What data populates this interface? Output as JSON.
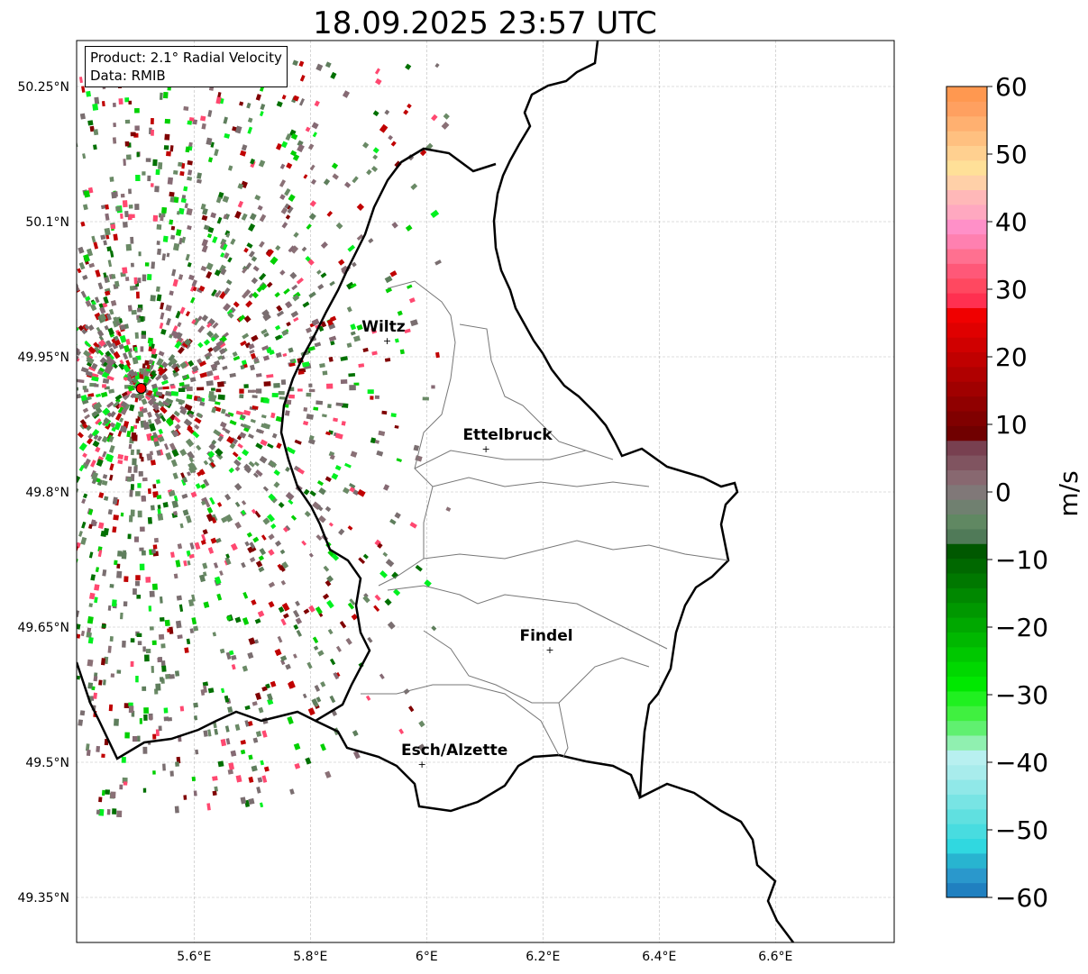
{
  "title": "18.09.2025 23:57 UTC",
  "info_box": {
    "product": "Product: 2.1° Radial Velocity",
    "data": "Data: RMIB"
  },
  "axes": {
    "lon_ticks": [
      {
        "v": 5.6,
        "label": "5.6°E"
      },
      {
        "v": 5.8,
        "label": "5.8°E"
      },
      {
        "v": 6.0,
        "label": "6°E"
      },
      {
        "v": 6.2,
        "label": "6.2°E"
      },
      {
        "v": 6.4,
        "label": "6.4°E"
      },
      {
        "v": 6.6,
        "label": "6.6°E"
      }
    ],
    "lat_ticks": [
      {
        "v": 50.25,
        "label": "50.25°N"
      },
      {
        "v": 50.1,
        "label": "50.1°N"
      },
      {
        "v": 49.95,
        "label": "49.95°N"
      },
      {
        "v": 49.8,
        "label": "49.8°N"
      },
      {
        "v": 49.65,
        "label": "49.65°N"
      },
      {
        "v": 49.5,
        "label": "49.5°N"
      },
      {
        "v": 49.35,
        "label": "49.35°N"
      }
    ],
    "lon_range": [
      5.398,
      6.805
    ],
    "lat_range": [
      49.3,
      50.3
    ]
  },
  "colorbar": {
    "label": "m/s",
    "range": [
      -60,
      60
    ],
    "ticks": [
      {
        "v": 60,
        "label": "60"
      },
      {
        "v": 50,
        "label": "50"
      },
      {
        "v": 40,
        "label": "40"
      },
      {
        "v": 30,
        "label": "30"
      },
      {
        "v": 20,
        "label": "20"
      },
      {
        "v": 10,
        "label": "10"
      },
      {
        "v": 0,
        "label": "0"
      },
      {
        "v": -10,
        "label": "−10"
      },
      {
        "v": -20,
        "label": "−20"
      },
      {
        "v": -30,
        "label": "−30"
      },
      {
        "v": -40,
        "label": "−40"
      },
      {
        "v": -50,
        "label": "−50"
      },
      {
        "v": -60,
        "label": "−60"
      }
    ],
    "colors": [
      "#2080c0",
      "#2a98cc",
      "#28b4d0",
      "#30d8e0",
      "#48dce0",
      "#60e0e0",
      "#78e4e4",
      "#90e8e8",
      "#a8ecec",
      "#b8f0f0",
      "#90f0b0",
      "#60f070",
      "#40f040",
      "#20f020",
      "#00e800",
      "#00d800",
      "#00c800",
      "#00b800",
      "#00a800",
      "#009800",
      "#008800",
      "#007800",
      "#006800",
      "#005800",
      "#507a58",
      "#608862",
      "#708070",
      "#807878",
      "#886870",
      "#805460",
      "#784050",
      "#700000",
      "#800000",
      "#900000",
      "#a00000",
      "#b00000",
      "#c00000",
      "#d00000",
      "#e00000",
      "#f00000",
      "#ff3050",
      "#ff4860",
      "#ff5878",
      "#ff7090",
      "#ff80b0",
      "#ff90c8",
      "#ffa8c0",
      "#ffb8b8",
      "#ffd0a8",
      "#ffe098",
      "#ffd090",
      "#ffc080",
      "#ffb070",
      "#ffa060",
      "#ff9850"
    ]
  },
  "radar_site": {
    "lon": 5.509,
    "lat": 49.915,
    "color": "#ff0000"
  },
  "cities": [
    {
      "name": "Wiltz",
      "lon": 5.932,
      "lat": 49.968
    },
    {
      "name": "Ettelbruck",
      "lon": 6.102,
      "lat": 49.848
    },
    {
      "name": "Findel",
      "lon": 6.212,
      "lat": 49.625
    },
    {
      "name": "Esch/Alzette",
      "lon": 5.992,
      "lat": 49.498
    }
  ]
}
